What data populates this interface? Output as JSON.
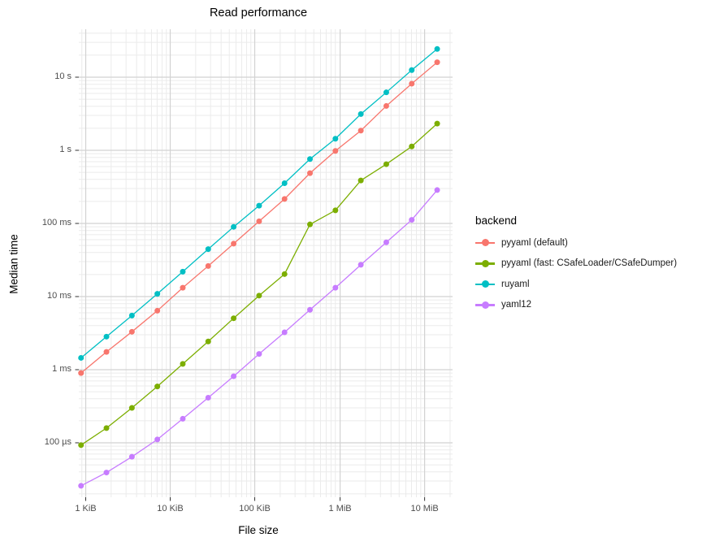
{
  "chart_data": {
    "type": "line",
    "title": "Read performance",
    "xlabel": "File size",
    "ylabel": "Median time",
    "legend_title": "backend",
    "x_scale": "log",
    "y_scale": "log",
    "x_unit": "KiB",
    "y_unit": "seconds",
    "grid": "major+minor",
    "legend_position": "right",
    "xlim_kib": [
      0.8285,
      21928
    ],
    "ylim_seconds": [
      1.8e-05,
      45.25
    ],
    "x_ticks": [
      {
        "label": "1 KiB",
        "kib": 1
      },
      {
        "label": "10 KiB",
        "kib": 10
      },
      {
        "label": "100 KiB",
        "kib": 100
      },
      {
        "label": "1 MiB",
        "kib": 1024
      },
      {
        "label": "10 MiB",
        "kib": 10240
      }
    ],
    "y_ticks": [
      {
        "label": "100 µs",
        "seconds": 0.0001
      },
      {
        "label": "1 ms",
        "seconds": 0.001
      },
      {
        "label": "10 ms",
        "seconds": 0.01
      },
      {
        "label": "100 ms",
        "seconds": 0.1
      },
      {
        "label": "1 s",
        "seconds": 1
      },
      {
        "label": "10 s",
        "seconds": 10
      }
    ],
    "x_kib": [
      0.88,
      1.76,
      3.52,
      7.04,
      14.08,
      28.16,
      56.32,
      112.64,
      225.28,
      450.56,
      901.12,
      1802.24,
      3604.48,
      7208.96,
      14417.92
    ],
    "series": [
      {
        "name": "pyyaml (default)",
        "color": "#F8766D",
        "seconds": [
          0.0009,
          0.00175,
          0.0033,
          0.0064,
          0.0132,
          0.0262,
          0.0529,
          0.107,
          0.216,
          0.487,
          0.98,
          1.86,
          4.04,
          8.15,
          16.0
        ]
      },
      {
        "name": "pyyaml (fast: CSafeLoader/CSafeDumper)",
        "color": "#7CAE00",
        "seconds": [
          9.3e-05,
          0.000159,
          0.0003,
          0.00059,
          0.0012,
          0.00243,
          0.00505,
          0.0103,
          0.0203,
          0.097,
          0.151,
          0.387,
          0.646,
          1.13,
          2.32
        ]
      },
      {
        "name": "ruyaml",
        "color": "#00BFC4",
        "seconds": [
          0.00145,
          0.00283,
          0.0055,
          0.0109,
          0.0219,
          0.0445,
          0.0898,
          0.175,
          0.355,
          0.759,
          1.44,
          3.13,
          6.2,
          12.5,
          24.3
        ]
      },
      {
        "name": "yaml12",
        "color": "#C77CFF",
        "seconds": [
          2.58e-05,
          3.92e-05,
          6.44e-05,
          0.000111,
          0.000213,
          0.000414,
          0.000813,
          0.00164,
          0.00324,
          0.00659,
          0.0132,
          0.0272,
          0.0552,
          0.112,
          0.286
        ]
      }
    ],
    "style": {
      "major_grid_color": "#d2d2d2",
      "minor_grid_color": "#ebebeb",
      "tick_mark_color": "#333333",
      "point_radius": 3.5,
      "line_width": 1.3
    }
  }
}
